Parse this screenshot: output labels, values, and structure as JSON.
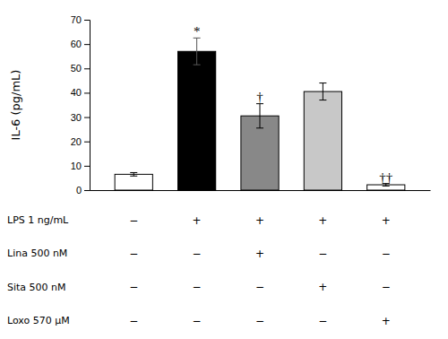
{
  "chart_data": {
    "type": "bar",
    "categories": [
      null,
      null,
      null,
      null,
      null
    ],
    "values": [
      6.5,
      57.0,
      30.5,
      40.5,
      2.2
    ],
    "errors": [
      0.7,
      5.5,
      5.0,
      3.5,
      0.5
    ],
    "colors": [
      "white",
      "black",
      "#888888",
      "#c8c8c8",
      "white"
    ],
    "ylim": [
      0,
      70
    ],
    "yticks": [
      0,
      10,
      20,
      30,
      40,
      50,
      60,
      70
    ],
    "ylabel": "IL-6 (pg/mL)",
    "annotations": [
      {
        "text": "*",
        "x": 1,
        "y": 63.5
      },
      {
        "text": "†",
        "x": 2,
        "y": 36.5
      },
      {
        "text": "††",
        "x": 4,
        "y": 3.5
      }
    ],
    "table": {
      "rows": [
        "LPS 1 ng/mL",
        "Lina 500 nM",
        "Sita 500 nM",
        "Loxo 570 μM"
      ],
      "cells": [
        [
          "−",
          "+",
          "+",
          "+",
          "+"
        ],
        [
          "−",
          "−",
          "+",
          "−",
          "−"
        ],
        [
          "−",
          "−",
          "−",
          "+",
          "−"
        ],
        [
          "−",
          "−",
          "−",
          "−",
          "+"
        ]
      ]
    }
  }
}
